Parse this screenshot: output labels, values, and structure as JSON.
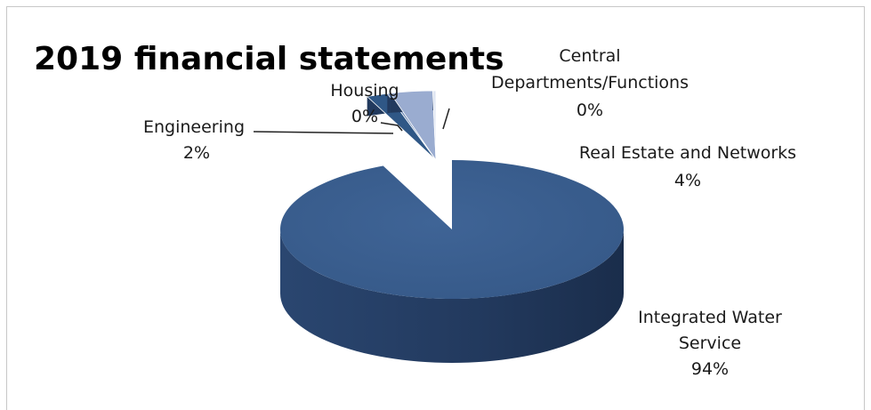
{
  "chart_data": {
    "type": "pie",
    "title": "2019 financial statements",
    "three_d": true,
    "slices": [
      {
        "label": "Integrated Water Service",
        "value_label": "94%",
        "value": 94,
        "color": "#3b5f8f"
      },
      {
        "label": "Engineering",
        "value_label": "2%",
        "value": 2,
        "color": "#2f5786"
      },
      {
        "label": "Housing",
        "value_label": "0%",
        "value": 0.3,
        "color": "#6b87b4"
      },
      {
        "label": "Real Estate and Networks",
        "value_label": "4%",
        "value": 4,
        "color": "#9aacd0"
      },
      {
        "label": "Central Departments/Functions",
        "value_label": "0%",
        "value": 0.3,
        "color": "#dfe6f2"
      }
    ]
  }
}
